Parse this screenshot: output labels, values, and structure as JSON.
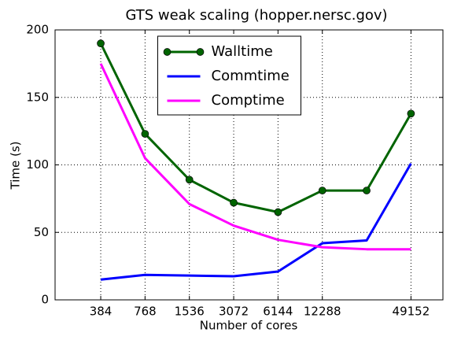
{
  "chart_data": {
    "type": "line",
    "title": "GTS weak scaling (hopper.nersc.gov)",
    "x_label": "Number of cores",
    "y_label": "Time (s)",
    "x": [
      384,
      768,
      1536,
      3072,
      6144,
      12288,
      24576,
      49152
    ],
    "x_log": true,
    "xlim": [
      188,
      81000
    ],
    "xticks": [
      384,
      768,
      1536,
      3072,
      6144,
      12288,
      49152
    ],
    "ylim": [
      0,
      200
    ],
    "yticks": [
      0,
      50,
      100,
      150,
      200
    ],
    "grid": true,
    "legend": "upper center",
    "series": [
      {
        "name": "Walltime",
        "color": "#006400",
        "marker": true,
        "values": [
          190,
          123,
          89,
          72,
          65,
          81,
          81,
          138
        ]
      },
      {
        "name": "Commtime",
        "color": "#0000ff",
        "marker": false,
        "values": [
          15,
          18.5,
          18,
          17.5,
          21,
          42,
          44,
          101
        ]
      },
      {
        "name": "Comptime",
        "color": "#ff00ff",
        "marker": false,
        "values": [
          175,
          105,
          71,
          55,
          44.5,
          39,
          37.5,
          37.5
        ]
      }
    ]
  }
}
